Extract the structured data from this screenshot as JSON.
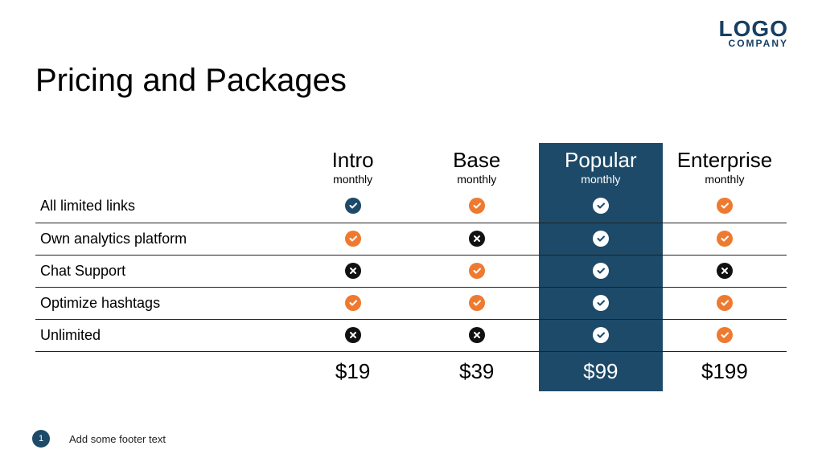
{
  "logo": {
    "main": "LOGO",
    "sub": "COMPANY"
  },
  "title": "Pricing and Packages",
  "colors": {
    "navy": "#1d4a68",
    "orange": "#ee7a30",
    "black": "#111111",
    "white": "#ffffff",
    "background": "#ffffff"
  },
  "plans": [
    {
      "name": "Intro",
      "period": "monthly",
      "price": "$19",
      "highlight": false
    },
    {
      "name": "Base",
      "period": "monthly",
      "price": "$39",
      "highlight": false
    },
    {
      "name": "Popular",
      "period": "monthly",
      "price": "$99",
      "highlight": true
    },
    {
      "name": "Enterprise",
      "period": "monthly",
      "price": "$199",
      "highlight": false
    }
  ],
  "features": [
    {
      "label": "All limited links",
      "cells": [
        "check-navy",
        "check-orange",
        "check-white",
        "check-orange"
      ]
    },
    {
      "label": "Own analytics platform",
      "cells": [
        "check-orange",
        "cross-black",
        "check-white",
        "check-orange"
      ]
    },
    {
      "label": "Chat Support",
      "cells": [
        "cross-black",
        "check-orange",
        "check-white",
        "cross-black"
      ]
    },
    {
      "label": "Optimize hashtags",
      "cells": [
        "check-orange",
        "check-orange",
        "check-white",
        "check-orange"
      ]
    },
    {
      "label": "Unlimited",
      "cells": [
        "cross-black",
        "cross-black",
        "check-white",
        "check-orange"
      ]
    }
  ],
  "footer": {
    "page": "1",
    "text": "Add some footer text"
  }
}
